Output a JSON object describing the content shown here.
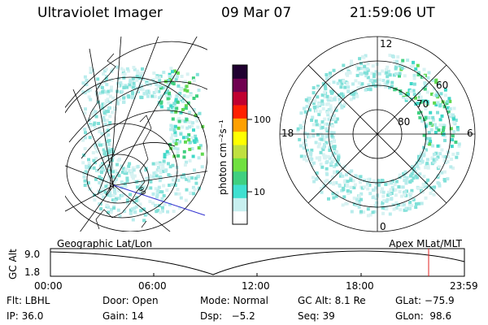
{
  "header": {
    "title": "Ultraviolet Imager",
    "date": "09 Mar 07",
    "time": "21:59:06 UT"
  },
  "colorbar": {
    "unit_label": "photon cm⁻²s⁻¹",
    "ticks": [
      "100",
      "10"
    ],
    "colors": [
      "#ffffff",
      "#c8f0f0",
      "#40e0d0",
      "#40d080",
      "#70e040",
      "#c0e040",
      "#ffff00",
      "#ffa000",
      "#ff2000",
      "#c00030",
      "#700050",
      "#200030"
    ]
  },
  "polar_plot": {
    "hour_labels": {
      "top": "12",
      "left": "18",
      "right": "6",
      "bottom": "0"
    },
    "lat_labels": [
      "60",
      "70",
      "80"
    ]
  },
  "timeline": {
    "left_title": "Geographic Lat/Lon",
    "right_title": "Apex MLat/MLT",
    "axis_label": "GC Alt",
    "y_max": "9.0",
    "y_min": "1.8",
    "time_ticks": [
      "00:00",
      "06:00",
      "12:00",
      "18:00",
      "23:59"
    ]
  },
  "footer": {
    "row1": [
      "Flt: LBHL",
      "Door: Open",
      "Mode: Normal",
      "GC Alt: 8.1 Re",
      "GLat: −75.9"
    ],
    "row2": [
      "IP: 36.0",
      "Gain: 14",
      "Dsp:   −5.2",
      "Seq: 39",
      "GLon:  98.6"
    ]
  },
  "map_labels": {
    "lon_tick": "90"
  }
}
